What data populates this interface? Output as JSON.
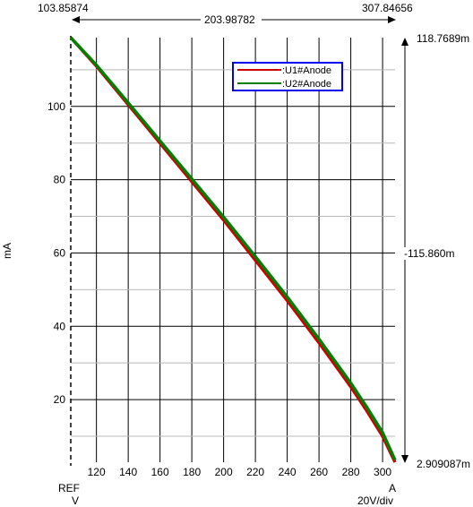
{
  "chart_data": {
    "type": "line",
    "xlabel_ref": "REF",
    "xlabel_unit": "V",
    "xlabel_cursor": "A",
    "x_scale_label": "20V/div",
    "ylabel": "mA",
    "x_ticks": [
      120,
      140,
      160,
      180,
      200,
      220,
      240,
      260,
      280,
      300
    ],
    "y_ticks": [
      20,
      40,
      60,
      80,
      100
    ],
    "xlim": [
      103.85874,
      307.84656
    ],
    "ylim": [
      2.909087,
      118.7689
    ],
    "cursor": {
      "x_start": "103.85874",
      "x_end": "307.84656",
      "x_delta": "203.98782",
      "y_top": "118.7689m",
      "y_bottom": "2.909087m",
      "y_delta": "-115.860m"
    },
    "series": [
      {
        "name": ":U1#Anode",
        "color": "#cc0000",
        "x": [
          103.86,
          120,
          140,
          160,
          180,
          200,
          220,
          240,
          260,
          280,
          290,
          300,
          307.85
        ],
        "y": [
          118.77,
          111,
          100.5,
          90,
          79.5,
          69,
          58,
          47,
          35.5,
          23.5,
          17,
          10,
          2.91
        ]
      },
      {
        "name": ":U2#Anode",
        "color": "#008000",
        "x": [
          103.86,
          120,
          140,
          160,
          180,
          200,
          220,
          240,
          260,
          280,
          290,
          300,
          307.85
        ],
        "y": [
          118.77,
          111.3,
          101,
          90.6,
          80.2,
          69.8,
          59,
          48,
          36.5,
          24.5,
          18,
          11,
          3.5
        ]
      }
    ],
    "legend_position": "top-right",
    "grid": true
  }
}
